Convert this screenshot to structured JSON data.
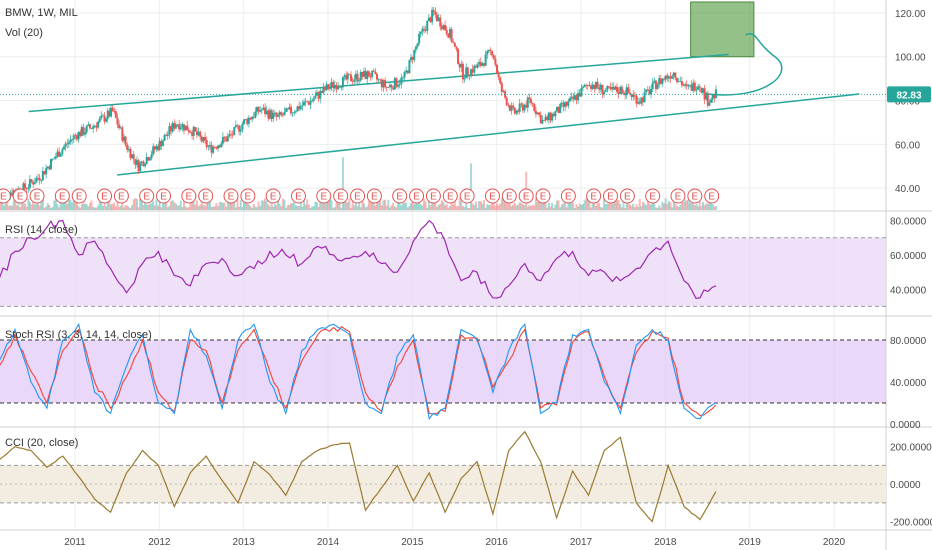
{
  "header": {
    "symbol": "BMW, 1W, MIL",
    "volume_label": "Vol (20)"
  },
  "price_badge": {
    "label": "82.83",
    "color": "#26a69a"
  },
  "colors": {
    "up": "#26a69a",
    "down": "#ef5350",
    "trend": "#26a69a",
    "target_box": "#5b9e4c",
    "rsi": "#9c27b0",
    "rsi_band": "#e8d5f5",
    "stoch_k": "#2196f3",
    "stoch_d": "#f44336",
    "stoch_band": "#e0c8f7",
    "cci": "#9a7a30",
    "cci_band": "#f3ece0",
    "earnings": "#e05353",
    "grid": "#eeeeee"
  },
  "earnings_marker": "E",
  "chart_data": [
    {
      "type": "candlestick",
      "title": "BMW, 1W, MIL",
      "x_ticks": [
        "2011",
        "2012",
        "2013",
        "2014",
        "2015",
        "2016",
        "2017",
        "2018",
        "2019",
        "2020"
      ],
      "y_ticks": [
        "120.00",
        "100.00",
        "80.00",
        "60.00",
        "40.00"
      ],
      "ylim": [
        30,
        125
      ],
      "xlim": [
        2010.1,
        2020.5
      ],
      "last_price": 82.83,
      "price_path": [
        [
          2010.1,
          37
        ],
        [
          2010.4,
          40
        ],
        [
          2010.6,
          46
        ],
        [
          2010.8,
          56
        ],
        [
          2011.0,
          64
        ],
        [
          2011.2,
          68
        ],
        [
          2011.45,
          75
        ],
        [
          2011.6,
          60
        ],
        [
          2011.75,
          50
        ],
        [
          2012.0,
          60
        ],
        [
          2012.2,
          70
        ],
        [
          2012.4,
          66
        ],
        [
          2012.6,
          58
        ],
        [
          2012.85,
          64
        ],
        [
          2013.0,
          70
        ],
        [
          2013.2,
          76
        ],
        [
          2013.4,
          72
        ],
        [
          2013.6,
          76
        ],
        [
          2013.8,
          80
        ],
        [
          2014.0,
          86
        ],
        [
          2014.25,
          90
        ],
        [
          2014.5,
          92
        ],
        [
          2014.7,
          86
        ],
        [
          2014.9,
          90
        ],
        [
          2015.1,
          110
        ],
        [
          2015.25,
          120
        ],
        [
          2015.45,
          110
        ],
        [
          2015.6,
          92
        ],
        [
          2015.8,
          96
        ],
        [
          2015.95,
          103
        ],
        [
          2016.05,
          85
        ],
        [
          2016.2,
          74
        ],
        [
          2016.4,
          80
        ],
        [
          2016.55,
          70
        ],
        [
          2016.75,
          76
        ],
        [
          2016.9,
          80
        ],
        [
          2017.1,
          88
        ],
        [
          2017.3,
          84
        ],
        [
          2017.5,
          85
        ],
        [
          2017.7,
          80
        ],
        [
          2017.9,
          88
        ],
        [
          2018.1,
          93
        ],
        [
          2018.25,
          85
        ],
        [
          2018.4,
          88
        ],
        [
          2018.5,
          80
        ],
        [
          2018.6,
          82.83
        ]
      ],
      "volume_peaks": [
        [
          2014.18,
          0.62
        ],
        [
          2015.7,
          0.55
        ],
        [
          2016.35,
          0.45
        ]
      ],
      "trendlines": [
        {
          "name": "channel-upper",
          "from": [
            2010.45,
            75
          ],
          "to": [
            2018.75,
            101
          ]
        },
        {
          "name": "channel-lower",
          "from": [
            2011.5,
            46
          ],
          "to": [
            2020.3,
            83
          ]
        }
      ],
      "target_box": {
        "x": [
          2018.3,
          2019.05
        ],
        "y": [
          100,
          125
        ]
      },
      "earnings_x": [
        2010.15,
        2010.35,
        2010.55,
        2010.85,
        2011.05,
        2011.35,
        2011.55,
        2011.85,
        2012.05,
        2012.35,
        2012.55,
        2012.85,
        2013.05,
        2013.35,
        2013.65,
        2013.95,
        2014.15,
        2014.35,
        2014.55,
        2014.85,
        2015.05,
        2015.25,
        2015.45,
        2015.65,
        2015.95,
        2016.15,
        2016.35,
        2016.55,
        2016.85,
        2017.15,
        2017.35,
        2017.55,
        2017.85,
        2018.15,
        2018.35,
        2018.55
      ]
    },
    {
      "type": "line",
      "title": "RSI (14, close)",
      "y_ticks": [
        "80.0000",
        "60.0000",
        "40.0000"
      ],
      "ylim": [
        25,
        85
      ],
      "bands": [
        70,
        30
      ],
      "values": [
        46,
        62,
        70,
        76,
        80,
        60,
        68,
        52,
        38,
        55,
        62,
        48,
        42,
        55,
        58,
        48,
        52,
        62,
        60,
        55,
        65,
        60,
        58,
        62,
        55,
        50,
        68,
        80,
        68,
        45,
        50,
        35,
        42,
        55,
        45,
        58,
        62,
        48,
        50,
        45,
        52,
        62,
        68,
        45,
        35,
        42
      ]
    },
    {
      "type": "line",
      "title": "Stoch RSI (3, 3, 14, 14, close)",
      "y_ticks": [
        "80.0000",
        "40.0000",
        "0.0000"
      ],
      "ylim": [
        -2,
        102
      ],
      "bands": [
        80,
        20
      ],
      "series": [
        {
          "values": [
            60,
            90,
            40,
            15,
            80,
            95,
            30,
            10,
            55,
            85,
            20,
            10,
            90,
            65,
            15,
            80,
            95,
            40,
            10,
            70,
            90,
            95,
            85,
            20,
            10,
            65,
            85,
            5,
            15,
            90,
            80,
            30,
            70,
            95,
            10,
            20,
            85,
            90,
            40,
            10,
            75,
            90,
            80,
            15,
            5,
            20
          ]
        },
        {
          "values": [
            55,
            85,
            50,
            20,
            70,
            90,
            40,
            15,
            45,
            80,
            30,
            12,
            80,
            70,
            20,
            70,
            90,
            50,
            15,
            60,
            85,
            92,
            88,
            30,
            12,
            55,
            80,
            10,
            12,
            85,
            82,
            35,
            60,
            90,
            15,
            18,
            78,
            88,
            45,
            15,
            68,
            88,
            82,
            20,
            8,
            18
          ]
        }
      ]
    },
    {
      "type": "line",
      "title": "CCI (20, close)",
      "y_ticks": [
        "200.0000",
        "0.0000",
        "-200.0000"
      ],
      "ylim": [
        -240,
        300
      ],
      "bands": [
        100,
        -100
      ],
      "values": [
        130,
        200,
        180,
        90,
        150,
        40,
        -80,
        -150,
        60,
        180,
        100,
        -120,
        60,
        150,
        20,
        -100,
        120,
        50,
        -60,
        120,
        180,
        210,
        220,
        -140,
        -20,
        100,
        -90,
        60,
        -150,
        30,
        120,
        -160,
        180,
        280,
        120,
        -180,
        70,
        -60,
        180,
        250,
        -100,
        -200,
        100,
        -120,
        -190,
        -40
      ]
    }
  ]
}
